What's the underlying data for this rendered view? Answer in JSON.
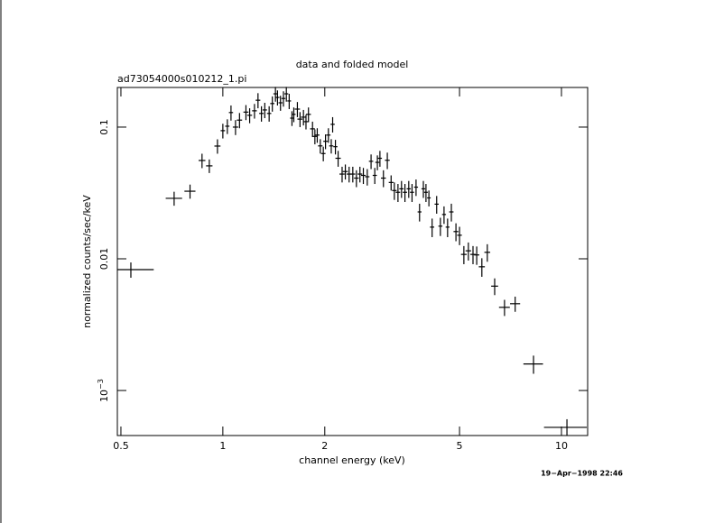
{
  "chart_data": {
    "type": "scatter",
    "title": "data and folded model",
    "subtitle": "ad73054000s010212_1.pi",
    "x_label": "channel energy (keV)",
    "y_label": "normalized counts/sec/keV",
    "timestamp": "19−Apr−1998 22:46",
    "x_log": true,
    "y_log": true,
    "color": "#000000",
    "xlim": [
      0.488,
      11.95
    ],
    "ylim": [
      0.000455,
      0.2
    ],
    "xticks": [
      0.5,
      1,
      2,
      5,
      10
    ],
    "yticks": [
      0.1,
      0.01,
      {
        "value": 0.001,
        "label": "10−3"
      }
    ],
    "x": [
      0.535,
      0.718,
      0.8,
      0.868,
      0.912,
      0.964,
      1.0,
      1.031,
      1.057,
      1.09,
      1.12,
      1.17,
      1.2,
      1.24,
      1.27,
      1.3,
      1.33,
      1.37,
      1.4,
      1.43,
      1.45,
      1.48,
      1.51,
      1.54,
      1.57,
      1.6,
      1.62,
      1.66,
      1.69,
      1.73,
      1.76,
      1.79,
      1.84,
      1.87,
      1.9,
      1.94,
      1.98,
      2.01,
      2.05,
      2.09,
      2.11,
      2.15,
      2.19,
      2.25,
      2.3,
      2.36,
      2.42,
      2.48,
      2.54,
      2.6,
      2.67,
      2.74,
      2.81,
      2.86,
      2.91,
      2.98,
      3.06,
      3.14,
      3.21,
      3.29,
      3.37,
      3.45,
      3.54,
      3.62,
      3.72,
      3.81,
      3.91,
      3.98,
      4.06,
      4.15,
      4.28,
      4.39,
      4.5,
      4.61,
      4.73,
      4.88,
      5.0,
      5.15,
      5.31,
      5.48,
      5.62,
      5.82,
      6.04,
      6.35,
      6.79,
      7.3,
      8.27,
      10.38
    ],
    "xerr": [
      0.09,
      0.04,
      0.03,
      0.02,
      0.02,
      0.02,
      0.015,
      0.015,
      0.015,
      0.02,
      0.02,
      0.02,
      0.02,
      0.02,
      0.02,
      0.02,
      0.02,
      0.02,
      0.02,
      0.02,
      0.02,
      0.02,
      0.02,
      0.02,
      0.02,
      0.02,
      0.02,
      0.03,
      0.03,
      0.03,
      0.03,
      0.03,
      0.03,
      0.03,
      0.03,
      0.03,
      0.03,
      0.03,
      0.03,
      0.03,
      0.03,
      0.03,
      0.04,
      0.04,
      0.04,
      0.04,
      0.04,
      0.04,
      0.04,
      0.04,
      0.04,
      0.04,
      0.04,
      0.04,
      0.04,
      0.05,
      0.05,
      0.05,
      0.05,
      0.05,
      0.05,
      0.05,
      0.05,
      0.05,
      0.05,
      0.05,
      0.05,
      0.05,
      0.05,
      0.06,
      0.06,
      0.06,
      0.06,
      0.06,
      0.07,
      0.08,
      0.08,
      0.1,
      0.1,
      0.1,
      0.1,
      0.12,
      0.12,
      0.15,
      0.25,
      0.25,
      0.55,
      1.5
    ],
    "values": [
      0.00828,
      0.0288,
      0.0326,
      0.0558,
      0.0508,
      0.0718,
      0.094,
      0.1016,
      0.129,
      0.1,
      0.113,
      0.13,
      0.123,
      0.133,
      0.16,
      0.127,
      0.135,
      0.127,
      0.151,
      0.179,
      0.168,
      0.153,
      0.165,
      0.179,
      0.158,
      0.117,
      0.125,
      0.137,
      0.115,
      0.119,
      0.11,
      0.125,
      0.097,
      0.085,
      0.087,
      0.072,
      0.063,
      0.078,
      0.087,
      0.072,
      0.105,
      0.071,
      0.058,
      0.044,
      0.046,
      0.044,
      0.044,
      0.041,
      0.044,
      0.043,
      0.042,
      0.055,
      0.043,
      0.054,
      0.058,
      0.041,
      0.056,
      0.038,
      0.033,
      0.032,
      0.034,
      0.032,
      0.034,
      0.032,
      0.035,
      0.0227,
      0.034,
      0.032,
      0.029,
      0.0174,
      0.026,
      0.0177,
      0.0217,
      0.0174,
      0.0227,
      0.0161,
      0.0151,
      0.0108,
      0.0115,
      0.0108,
      0.0107,
      0.0087,
      0.0112,
      0.0062,
      0.00428,
      0.00456,
      0.00159,
      0.000525
    ],
    "yerr": [
      0.0011,
      0.0035,
      0.004,
      0.007,
      0.006,
      0.009,
      0.012,
      0.013,
      0.017,
      0.013,
      0.015,
      0.017,
      0.016,
      0.017,
      0.021,
      0.017,
      0.018,
      0.017,
      0.02,
      0.023,
      0.022,
      0.02,
      0.022,
      0.023,
      0.021,
      0.015,
      0.016,
      0.018,
      0.015,
      0.016,
      0.014,
      0.016,
      0.013,
      0.011,
      0.011,
      0.009,
      0.008,
      0.01,
      0.011,
      0.009,
      0.014,
      0.009,
      0.008,
      0.006,
      0.006,
      0.006,
      0.006,
      0.006,
      0.006,
      0.006,
      0.006,
      0.007,
      0.006,
      0.007,
      0.008,
      0.006,
      0.008,
      0.005,
      0.005,
      0.005,
      0.005,
      0.005,
      0.005,
      0.005,
      0.005,
      0.0035,
      0.005,
      0.005,
      0.004,
      0.0028,
      0.004,
      0.0028,
      0.0033,
      0.0028,
      0.0035,
      0.0025,
      0.0024,
      0.0017,
      0.0018,
      0.0017,
      0.0017,
      0.0014,
      0.0017,
      0.0009,
      0.0006,
      0.0006,
      0.00025,
      8e-05
    ]
  }
}
